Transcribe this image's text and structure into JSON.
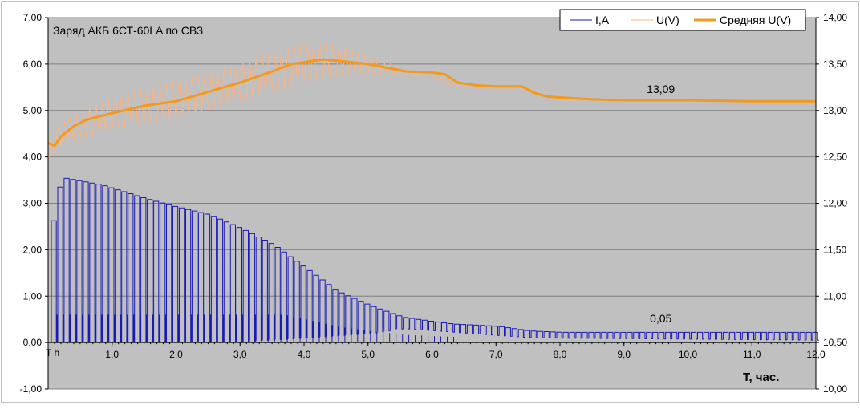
{
  "chart_data": {
    "type": "line",
    "title": "Заряд АКБ 6СТ-60LA по СВЗ",
    "xlabel": "T, час.",
    "x_origin_label": "T h",
    "x_ticks": [
      "1,0",
      "2,0",
      "3,0",
      "4,0",
      "5,0",
      "6,0",
      "7,0",
      "8,0",
      "9,0",
      "10,0",
      "11,0",
      "12,0"
    ],
    "xlim": [
      0,
      12
    ],
    "ylim_left": [
      -1,
      7
    ],
    "ylim_right": [
      10,
      14
    ],
    "y_left_ticks": [
      "7,00",
      "6,00",
      "5,00",
      "4,00",
      "3,00",
      "2,00",
      "1,00",
      "0,00",
      "-1,00"
    ],
    "y_right_ticks": [
      "14,00",
      "13,50",
      "13,00",
      "12,50",
      "12,00",
      "11,50",
      "11,00",
      "10,50",
      "10,00"
    ],
    "grid": true,
    "legend_position": "top-right",
    "annotations": [
      {
        "text": "13,09",
        "x": 9.2,
        "y_axis": "right",
        "y": 13.12
      },
      {
        "text": "0,05",
        "x": 9.2,
        "y_axis": "left",
        "y": 0.3
      }
    ],
    "series": [
      {
        "name": "I,A",
        "axis": "left",
        "color": "#1a1ab8",
        "style": "pulse",
        "pulse_period_h": 0.1,
        "envelope_x": [
          0.0,
          0.1,
          0.2,
          0.8,
          1.5,
          1.9,
          2.5,
          3.0,
          3.5,
          4.0,
          4.5,
          5.0,
          5.5,
          6.0,
          6.3,
          7.0,
          7.5,
          8.0,
          12.0
        ],
        "envelope_y": [
          2.1,
          3.15,
          3.55,
          3.4,
          3.1,
          2.95,
          2.75,
          2.45,
          2.1,
          1.6,
          1.1,
          0.8,
          0.55,
          0.45,
          0.4,
          0.35,
          0.25,
          0.22,
          0.22
        ],
        "base_x": [
          0.0,
          1.0,
          2.0,
          3.0,
          4.0,
          5.0,
          5.5,
          6.0,
          7.5,
          12.0
        ],
        "base_y": [
          0.0,
          0.0,
          0.0,
          0.02,
          0.1,
          0.2,
          0.3,
          0.25,
          0.1,
          0.05
        ]
      },
      {
        "name": "U(V)",
        "axis": "right",
        "color": "#f3b58a",
        "style": "oscillating",
        "oscillation_period_h": 0.1,
        "center_x": [
          0.0,
          0.2,
          1.0,
          2.0,
          3.0,
          4.0,
          4.5,
          5.0,
          5.5,
          6.0,
          6.3,
          7.0,
          7.4,
          8.0,
          12.0
        ],
        "center_y": [
          12.55,
          12.75,
          12.97,
          13.12,
          13.3,
          13.52,
          13.55,
          13.5,
          13.42,
          13.38,
          13.28,
          13.25,
          13.25,
          13.12,
          13.1
        ],
        "amplitude_x": [
          0.0,
          1.0,
          2.0,
          3.0,
          3.8,
          4.5,
          5.2,
          5.5,
          6.0,
          6.3,
          7.5,
          8.0,
          12.0
        ],
        "amplitude_y": [
          0.12,
          0.17,
          0.2,
          0.2,
          0.22,
          0.18,
          0.08,
          0.04,
          0.03,
          0.02,
          0.02,
          0.015,
          0.01
        ]
      },
      {
        "name": "Средняя U(V)",
        "axis": "right",
        "color": "#f19a1f",
        "style": "smooth",
        "x": [
          0.0,
          0.1,
          0.2,
          0.4,
          0.6,
          1.0,
          1.5,
          2.0,
          2.5,
          3.0,
          3.5,
          3.8,
          4.0,
          4.3,
          4.6,
          5.0,
          5.3,
          5.6,
          6.0,
          6.2,
          6.4,
          6.7,
          7.0,
          7.4,
          7.6,
          7.8,
          8.0,
          8.5,
          9.0,
          10.0,
          11.0,
          12.0
        ],
        "y": [
          12.65,
          12.62,
          12.72,
          12.83,
          12.9,
          12.97,
          13.05,
          13.1,
          13.2,
          13.3,
          13.42,
          13.5,
          13.52,
          13.55,
          13.53,
          13.5,
          13.46,
          13.42,
          13.41,
          13.39,
          13.3,
          13.27,
          13.26,
          13.26,
          13.19,
          13.15,
          13.14,
          13.12,
          13.11,
          13.11,
          13.1,
          13.1
        ]
      }
    ]
  }
}
